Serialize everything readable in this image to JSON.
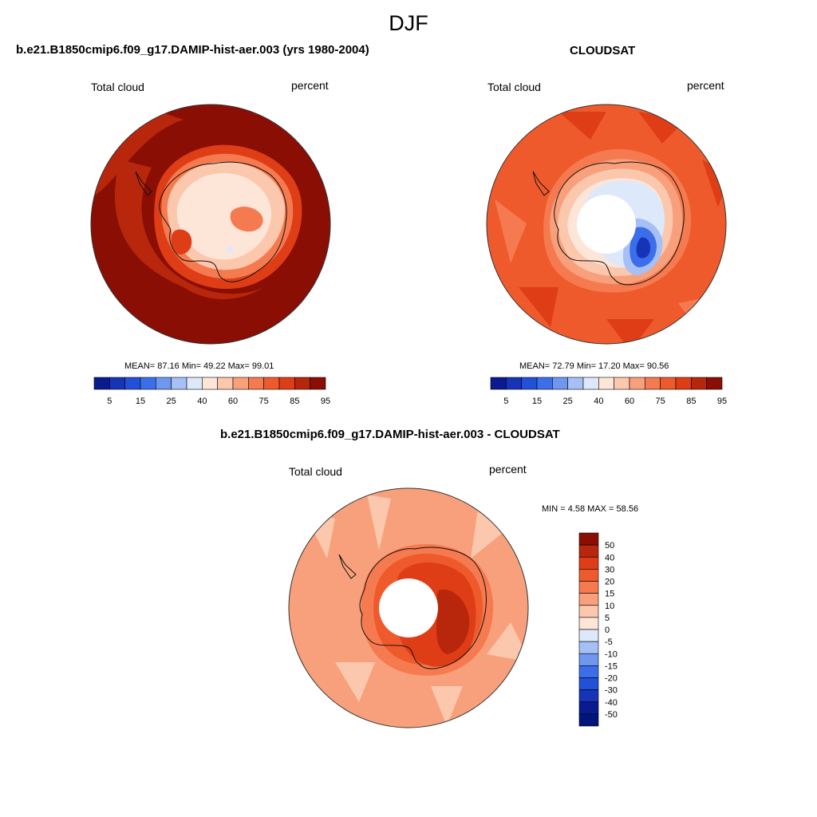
{
  "season": "DJF",
  "panels": [
    {
      "id": "model",
      "title": "b.e21.B1850cmip6.f09_g17.DAMIP-hist-aer.003 (yrs 1980-2004)",
      "var_label": "Total cloud",
      "units": "percent",
      "stats": "MEAN=  87.16  Min=  49.22  Max=  99.01"
    },
    {
      "id": "obs",
      "title": "CLOUDSAT",
      "var_label": "Total cloud",
      "units": "percent",
      "stats": "MEAN=  72.79  Min=  17.20  Max=  90.56"
    },
    {
      "id": "diff",
      "title": "b.e21.B1850cmip6.f09_g17.DAMIP-hist-aer.003 - CLOUDSAT",
      "var_label": "Total cloud",
      "units": "percent",
      "stats": "MIN =   4.58 MAX =  58.56"
    }
  ],
  "field_colorbar": {
    "colors": [
      "#0a1a8f",
      "#1733b8",
      "#2350d8",
      "#3b6ee8",
      "#6f97f0",
      "#a6c0f5",
      "#dde8fb",
      "#fde5d8",
      "#fbc7ad",
      "#f8a07c",
      "#f57a50",
      "#ef5a2d",
      "#de3d16",
      "#b8260c",
      "#8a0e04"
    ],
    "labels": [
      "5",
      "15",
      "25",
      "40",
      "60",
      "75",
      "85",
      "95"
    ]
  },
  "diff_colorbar": {
    "colors": [
      "#8a0e04",
      "#b8260c",
      "#de3d16",
      "#ef5a2d",
      "#f57a50",
      "#f8a07c",
      "#fbc7ad",
      "#fde5d8",
      "#dde8fb",
      "#a6c0f5",
      "#6f97f0",
      "#3b6ee8",
      "#2350d8",
      "#1733b8",
      "#0a1a8f",
      "#00147a"
    ],
    "labels": [
      "50",
      "40",
      "30",
      "20",
      "15",
      "10",
      "5",
      "0",
      "-5",
      "-10",
      "-15",
      "-20",
      "-30",
      "-40",
      "-50"
    ]
  }
}
